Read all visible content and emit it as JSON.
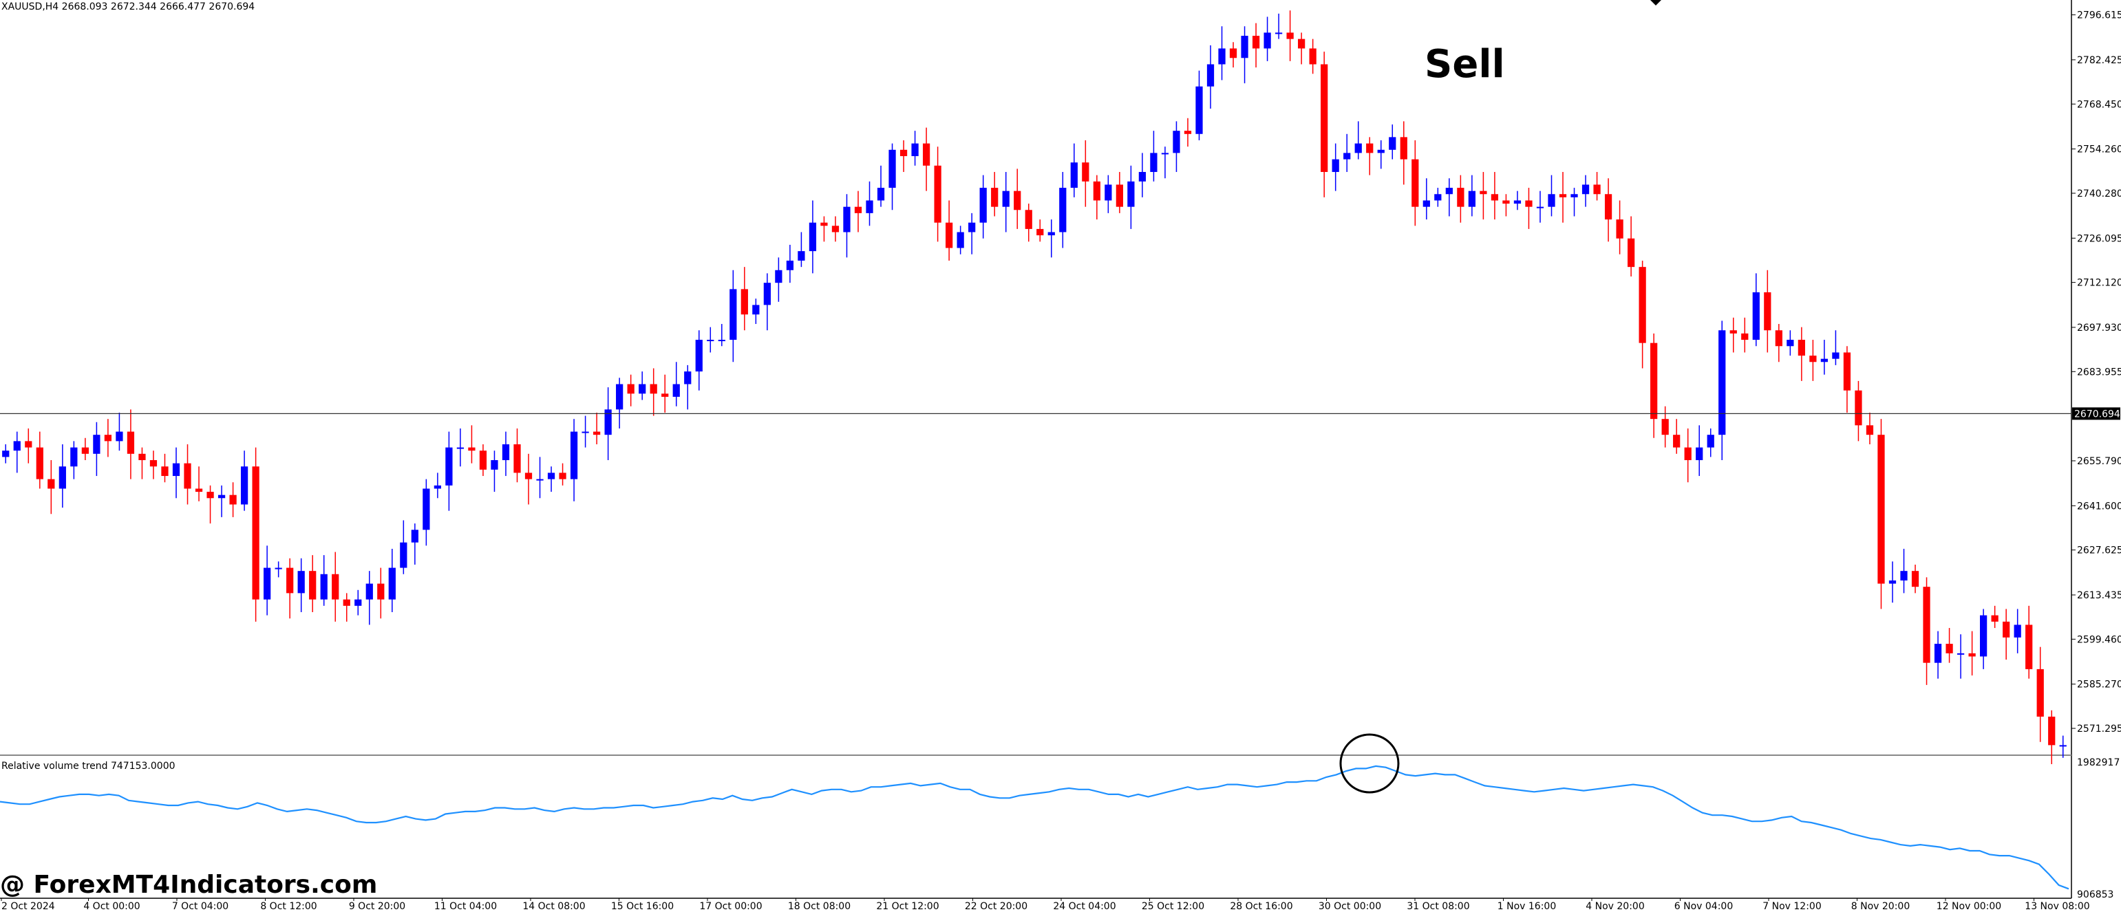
{
  "chart_data": {
    "type": "candlestick",
    "symbol_header": "XAUUSD,H4  2668.093 2672.344 2666.477 2670.694",
    "ylim": [
      2565,
      2800
    ],
    "y_ticks": [
      "2796.615",
      "2782.425",
      "2768.450",
      "2754.260",
      "2740.280",
      "2726.095",
      "2712.120",
      "2697.930",
      "2683.955",
      "2655.790",
      "2641.600",
      "2627.625",
      "2613.435",
      "2599.460",
      "2585.270",
      "2571.295"
    ],
    "current_price": "2670.694",
    "x_ticks": [
      "2 Oct 2024",
      "4 Oct 00:00",
      "7 Oct 04:00",
      "8 Oct 12:00",
      "9 Oct 20:00",
      "11 Oct 04:00",
      "14 Oct 08:00",
      "15 Oct 16:00",
      "17 Oct 00:00",
      "18 Oct 08:00",
      "21 Oct 12:00",
      "22 Oct 20:00",
      "24 Oct 04:00",
      "25 Oct 12:00",
      "28 Oct 16:00",
      "30 Oct 00:00",
      "31 Oct 08:00",
      "1 Nov 16:00",
      "4 Nov 20:00",
      "6 Nov 04:00",
      "7 Nov 12:00",
      "8 Nov 20:00",
      "12 Nov 00:00",
      "13 Nov 08:00"
    ],
    "up_color": "#0000ff",
    "down_color": "#ff0000",
    "closes": [
      2659,
      2662,
      2660,
      2650,
      2647,
      2654,
      2660,
      2658,
      2664,
      2662,
      2665,
      2658,
      2656,
      2654,
      2651,
      2655,
      2647,
      2646,
      2644,
      2645,
      2642,
      2654,
      2612,
      2622,
      2622,
      2614,
      2621,
      2612,
      2620,
      2612,
      2610,
      2612,
      2617,
      2612,
      2622,
      2630,
      2634,
      2647,
      2648,
      2660,
      2660,
      2659,
      2653,
      2656,
      2661,
      2652,
      2650,
      2650,
      2652,
      2650,
      2665,
      2665,
      2664,
      2672,
      2680,
      2677,
      2680,
      2677,
      2676,
      2680,
      2684,
      2694,
      2694,
      2694,
      2710,
      2702,
      2705,
      2712,
      2716,
      2719,
      2722,
      2731,
      2730,
      2728,
      2736,
      2734,
      2738,
      2742,
      2754,
      2752,
      2756,
      2749,
      2731,
      2723,
      2728,
      2731,
      2742,
      2736,
      2741,
      2735,
      2729,
      2727,
      2728,
      2742,
      2750,
      2744,
      2738,
      2743,
      2736,
      2744,
      2747,
      2753,
      2753,
      2760,
      2759,
      2774,
      2781,
      2786,
      2783,
      2790,
      2786,
      2791,
      2791,
      2789,
      2786,
      2781,
      2747,
      2751,
      2753,
      2756,
      2753,
      2754,
      2758,
      2751,
      2736,
      2738,
      2740,
      2742,
      2736,
      2741,
      2740,
      2738,
      2737,
      2738,
      2736,
      2736,
      2740,
      2739,
      2740,
      2743,
      2740,
      2732,
      2726,
      2717,
      2693,
      2669,
      2664,
      2660,
      2656,
      2660,
      2664,
      2697,
      2696,
      2694,
      2709,
      2697,
      2692,
      2694,
      2689,
      2687,
      2688,
      2690,
      2678,
      2667,
      2664,
      2617,
      2618,
      2621,
      2616,
      2592,
      2598,
      2595,
      2595,
      2594,
      2607,
      2605,
      2600,
      2604,
      2590,
      2575,
      2566,
      2566
    ],
    "rvt": {
      "label": "Relative volume trend 747153.0000",
      "max_label": "1982917",
      "min_label": "906853",
      "values": [
        1660000,
        1650000,
        1640000,
        1640000,
        1660000,
        1680000,
        1700000,
        1710000,
        1720000,
        1720000,
        1710000,
        1720000,
        1710000,
        1670000,
        1660000,
        1650000,
        1640000,
        1630000,
        1630000,
        1650000,
        1660000,
        1640000,
        1630000,
        1610000,
        1600000,
        1620000,
        1650000,
        1630000,
        1600000,
        1580000,
        1590000,
        1600000,
        1590000,
        1570000,
        1550000,
        1530000,
        1500000,
        1490000,
        1490000,
        1500000,
        1520000,
        1540000,
        1520000,
        1510000,
        1520000,
        1560000,
        1570000,
        1580000,
        1580000,
        1590000,
        1610000,
        1610000,
        1600000,
        1600000,
        1610000,
        1590000,
        1580000,
        1600000,
        1610000,
        1600000,
        1600000,
        1610000,
        1610000,
        1620000,
        1630000,
        1630000,
        1610000,
        1620000,
        1630000,
        1640000,
        1660000,
        1670000,
        1690000,
        1680000,
        1710000,
        1680000,
        1670000,
        1690000,
        1700000,
        1730000,
        1760000,
        1740000,
        1720000,
        1750000,
        1760000,
        1760000,
        1740000,
        1750000,
        1780000,
        1780000,
        1790000,
        1800000,
        1810000,
        1790000,
        1800000,
        1810000,
        1780000,
        1760000,
        1760000,
        1720000,
        1700000,
        1690000,
        1690000,
        1710000,
        1720000,
        1730000,
        1740000,
        1760000,
        1770000,
        1760000,
        1760000,
        1740000,
        1720000,
        1720000,
        1700000,
        1720000,
        1700000,
        1720000,
        1740000,
        1760000,
        1780000,
        1760000,
        1770000,
        1780000,
        1800000,
        1800000,
        1790000,
        1780000,
        1790000,
        1800000,
        1820000,
        1820000,
        1830000,
        1830000,
        1860000,
        1880000,
        1910000,
        1930000,
        1930000,
        1950000,
        1940000,
        1910000,
        1880000,
        1870000,
        1880000,
        1890000,
        1880000,
        1880000,
        1850000,
        1820000,
        1790000,
        1780000,
        1770000,
        1760000,
        1750000,
        1740000,
        1750000,
        1760000,
        1770000,
        1760000,
        1750000,
        1760000,
        1770000,
        1780000,
        1790000,
        1800000,
        1790000,
        1780000,
        1750000,
        1710000,
        1660000,
        1610000,
        1570000,
        1550000,
        1550000,
        1540000,
        1520000,
        1500000,
        1500000,
        1510000,
        1530000,
        1540000,
        1500000,
        1490000,
        1470000,
        1450000,
        1430000,
        1400000,
        1380000,
        1360000,
        1350000,
        1330000,
        1310000,
        1300000,
        1310000,
        1300000,
        1290000,
        1270000,
        1280000,
        1260000,
        1260000,
        1230000,
        1220000,
        1220000,
        1200000,
        1180000,
        1150000,
        1070000,
        980000,
        950000
      ]
    },
    "annotation": "Sell"
  },
  "watermark": "@ ForexMT4Indicators.com"
}
